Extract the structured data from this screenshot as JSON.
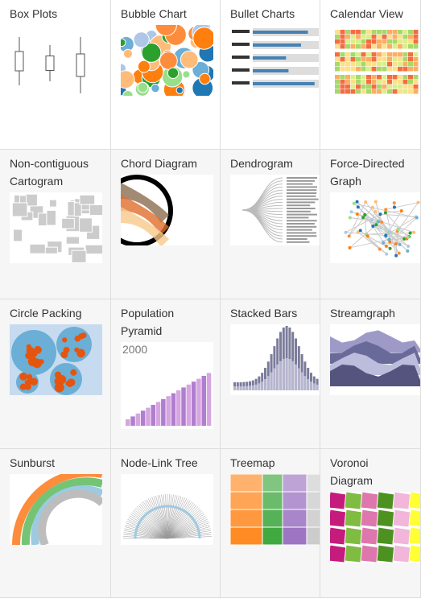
{
  "gallery": {
    "items": [
      {
        "title": "Box Plots"
      },
      {
        "title": "Bubble Chart"
      },
      {
        "title": "Bullet Charts"
      },
      {
        "title": "Calendar View"
      },
      {
        "title": "Non-contiguous Cartogram"
      },
      {
        "title": "Chord Diagram"
      },
      {
        "title": "Dendrogram"
      },
      {
        "title": "Force-Directed Graph"
      },
      {
        "title": "Circle Packing"
      },
      {
        "title": "Population Pyramid",
        "thumbnail_label": "2000"
      },
      {
        "title": "Stacked Bars"
      },
      {
        "title": "Streamgraph"
      },
      {
        "title": "Sunburst"
      },
      {
        "title": "Node-Link Tree"
      },
      {
        "title": "Treemap"
      },
      {
        "title": "Voronoi Diagram"
      }
    ]
  }
}
